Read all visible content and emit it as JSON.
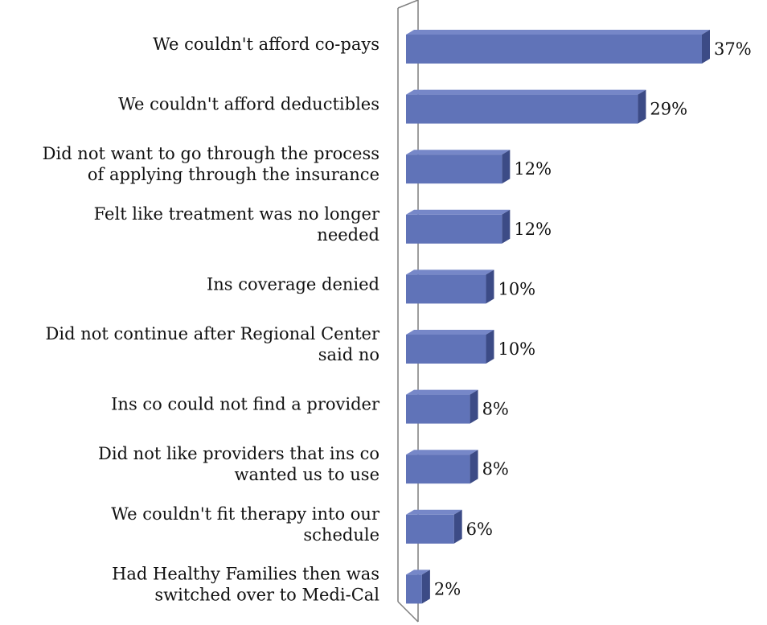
{
  "chart_data": {
    "type": "bar",
    "orientation": "horizontal",
    "style": "3d",
    "categories": [
      "We couldn't afford co-pays",
      "We couldn't afford deductibles",
      "Did not want to go through the process of applying through the insurance",
      "Felt like treatment was no longer needed",
      "Ins coverage denied",
      "Did not continue after Regional Center said no",
      "Ins co could not find a provider",
      "Did not like providers that ins co wanted us to use",
      "We couldn't fit therapy into our schedule",
      "Had Healthy Families then was switched over to Medi-Cal"
    ],
    "category_lines": [
      [
        "We couldn't afford co-pays"
      ],
      [
        "We couldn't afford deductibles"
      ],
      [
        "Did not want to go through the process",
        "of applying through the insurance"
      ],
      [
        "Felt like treatment was no longer",
        "needed"
      ],
      [
        "Ins coverage denied"
      ],
      [
        "Did not continue after Regional Center",
        "said no"
      ],
      [
        "Ins co could not find a provider"
      ],
      [
        "Did not like providers that ins co",
        "wanted us to use"
      ],
      [
        "We couldn't fit therapy into our",
        "schedule"
      ],
      [
        "Had Healthy Families then was",
        "switched over to Medi-Cal"
      ]
    ],
    "values": [
      37,
      29,
      12,
      12,
      10,
      10,
      8,
      8,
      6,
      2
    ],
    "value_labels": [
      "37%",
      "29%",
      "12%",
      "12%",
      "10%",
      "10%",
      "8%",
      "8%",
      "6%",
      "2%"
    ],
    "xlim": [
      0,
      37
    ],
    "grid": false,
    "legend": "none",
    "colors": {
      "bar_front": "#6073b8",
      "bar_top": "#7687c8",
      "bar_side": "#3c4b86",
      "wall": "#7f7f7f",
      "text": "#111111"
    }
  }
}
